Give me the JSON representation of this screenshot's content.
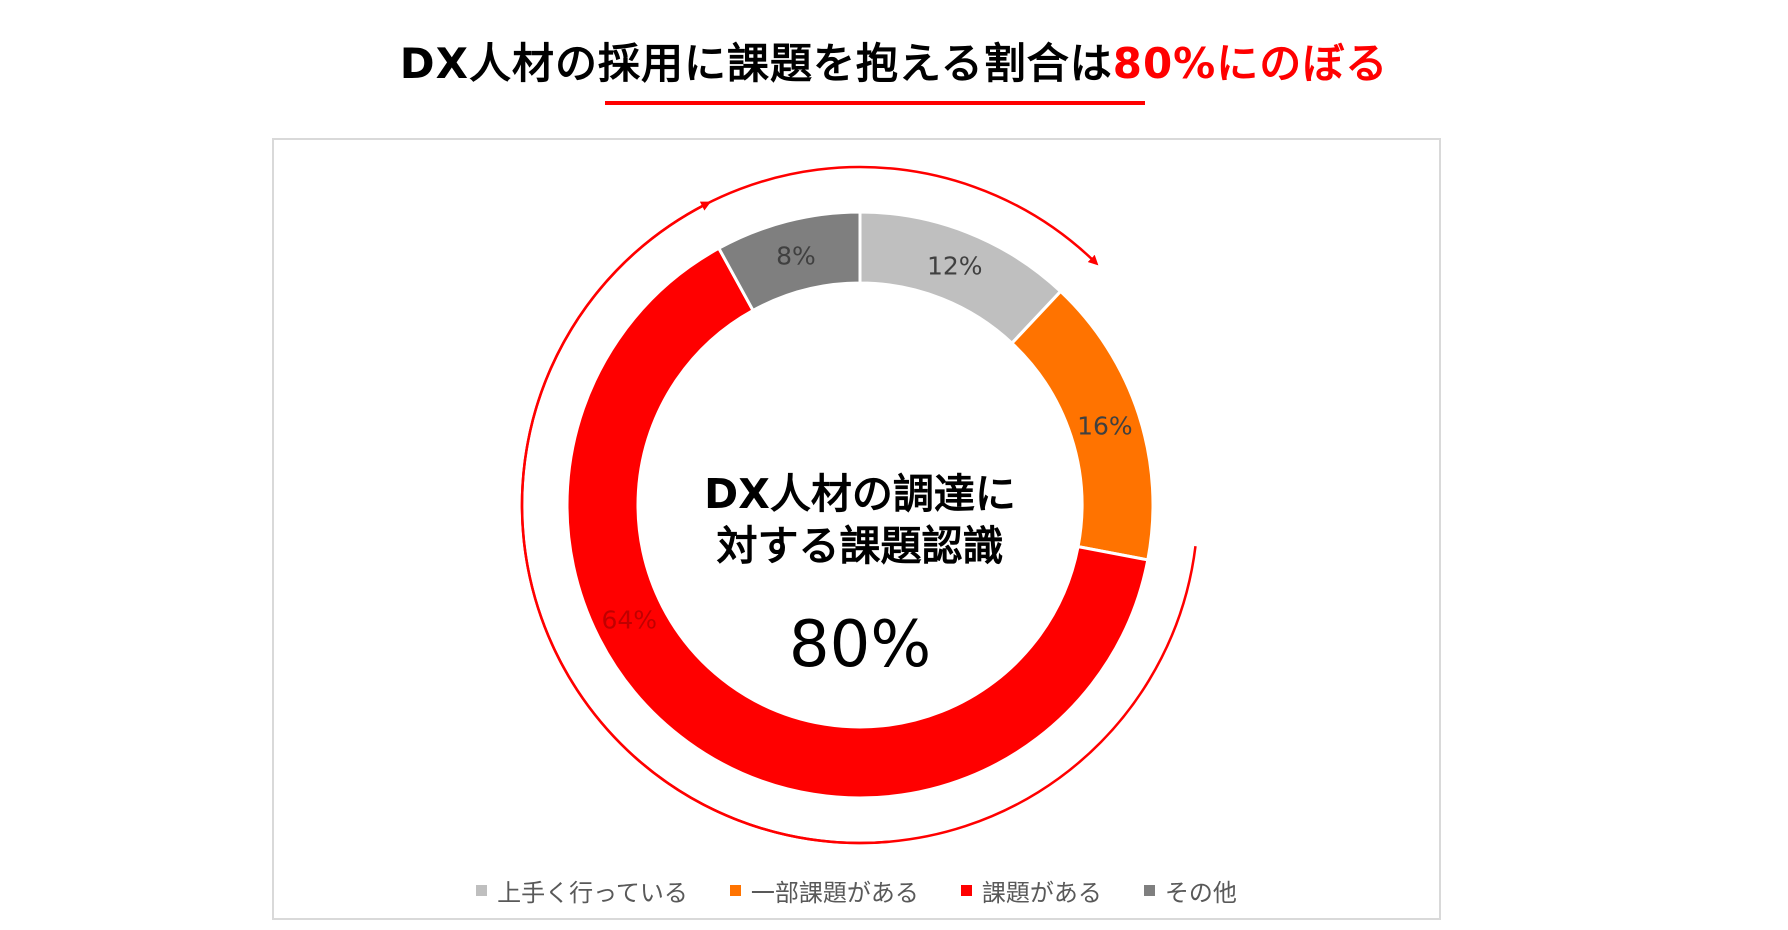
{
  "title": {
    "main": "DX人材の採用に課題を抱える割合は",
    "accent": "80%にのぼる"
  },
  "center": {
    "line1": "DX人材の調達に",
    "line2": "対する課題認識",
    "value": "80%"
  },
  "colors": {
    "accent": "#ff0000"
  },
  "chart_data": {
    "type": "pie",
    "variant": "donut",
    "categories": [
      "上手く行っている",
      "一部課題がある",
      "課題がある",
      "その他"
    ],
    "values": [
      12,
      16,
      64,
      8
    ],
    "labels": [
      "12%",
      "16%",
      "64%",
      "8%"
    ],
    "colors": [
      "#bfbfbf",
      "#ff7300",
      "#ff0000",
      "#7f7f7f"
    ],
    "legend": "bottom"
  }
}
